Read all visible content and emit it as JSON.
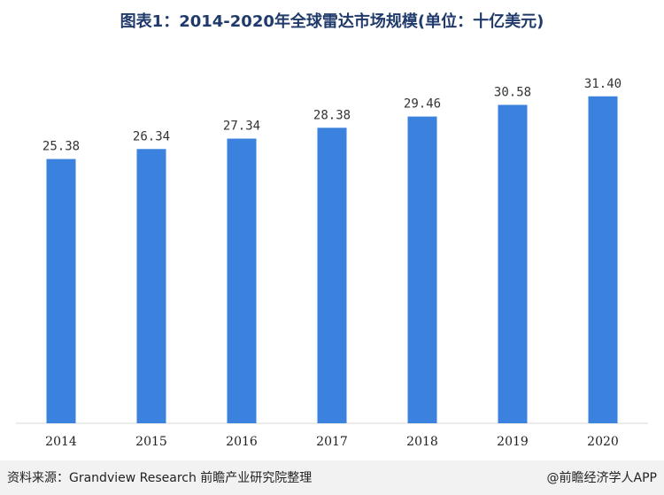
{
  "chart_data": {
    "type": "bar",
    "title": "图表1：2014-2020年全球雷达市场规模(单位：十亿美元)",
    "categories": [
      "2014",
      "2015",
      "2016",
      "2017",
      "2018",
      "2019",
      "2020"
    ],
    "values": [
      25.38,
      26.34,
      27.34,
      28.38,
      29.46,
      30.58,
      31.4
    ],
    "value_labels": [
      "25.38",
      "26.34",
      "27.34",
      "28.38",
      "29.46",
      "30.58",
      "31.40"
    ],
    "ylim": [
      0,
      36.4
    ],
    "grid": false,
    "legend": "none",
    "bar_color": "#3a82dd"
  },
  "footer": {
    "source": "资料来源：Grandview Research 前瞻产业研究院整理",
    "brand": "@前瞻经济学人APP"
  }
}
